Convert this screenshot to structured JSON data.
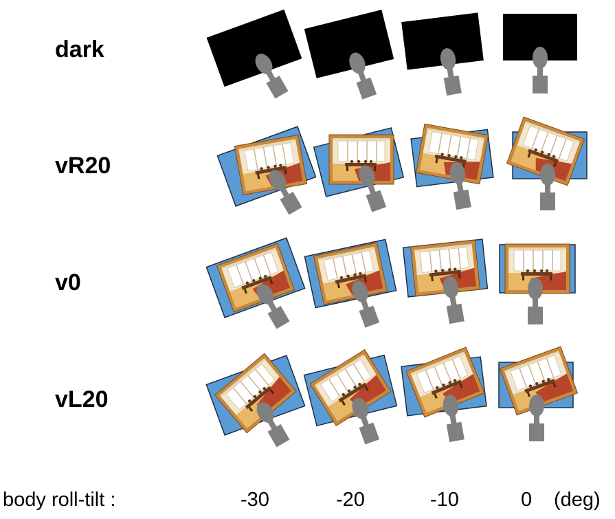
{
  "rows": [
    {
      "label": "dark",
      "scene": "dark"
    },
    {
      "label": "vR20",
      "scene": "room",
      "visual_tilt_deg": 20
    },
    {
      "label": "v0",
      "scene": "room",
      "visual_tilt_deg": 0
    },
    {
      "label": "vL20",
      "scene": "room",
      "visual_tilt_deg": -20
    }
  ],
  "axis": {
    "title": "body roll-tilt :",
    "ticks": [
      "-30",
      "-20",
      "-10",
      "0"
    ],
    "tick_values": [
      -30,
      -20,
      -10,
      0
    ],
    "unit": "(deg)"
  },
  "colors": {
    "dark_screen": "#000000",
    "blue_frame": "#5b9bd5",
    "head_body": "#808080",
    "wall": "#f3e6cf",
    "floor_red": "#b8452a",
    "frame_wood": "#c98a3c"
  }
}
